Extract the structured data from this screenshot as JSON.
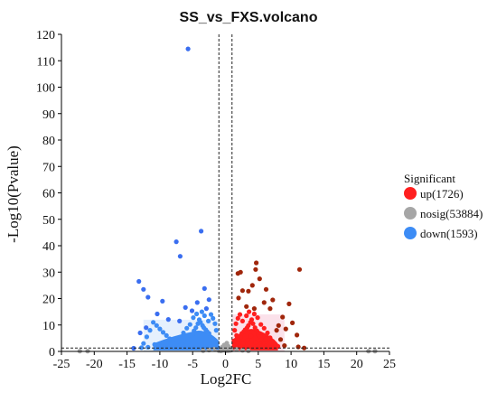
{
  "chart_data": {
    "type": "scatter",
    "title": "SS_vs_FXS.volcano",
    "xlabel": "Log2FC",
    "ylabel": "-Log10(Pvalue)",
    "xlim": [
      -25,
      25
    ],
    "ylim": [
      0,
      120
    ],
    "x_ticks": [
      -25,
      -20,
      -15,
      -10,
      -5,
      0,
      5,
      10,
      15,
      20,
      25
    ],
    "y_ticks": [
      0,
      10,
      20,
      30,
      40,
      50,
      60,
      70,
      80,
      90,
      100,
      110,
      120
    ],
    "grid": false,
    "legend": {
      "title": "Significant",
      "placement": "right",
      "entries": [
        {
          "label": "up(1726)",
          "color": "#ff1f1f"
        },
        {
          "label": "nosig(53884)",
          "color": "#a6a6a6"
        },
        {
          "label": "down(1593)",
          "color": "#3d8cf5"
        }
      ]
    },
    "thresholds": {
      "log2fc": [
        -1,
        1
      ],
      "neg_log10_pvalue": 1.3
    },
    "colors": {
      "up_core": "#ff1f1f",
      "up_outlier": "#a0260b",
      "nosig": "#a6a6a6",
      "down_core": "#3d8cf5",
      "down_outlier": "#3a6ef0"
    },
    "series": [
      {
        "name": "up(1726)",
        "color": "#ff1f1f",
        "points": [
          [
            1.2,
            1.5
          ],
          [
            1.5,
            2.5
          ],
          [
            1.8,
            3.2
          ],
          [
            2.0,
            4.5
          ],
          [
            2.3,
            5.5
          ],
          [
            2.5,
            6.8
          ],
          [
            2.8,
            7.5
          ],
          [
            3.0,
            8.2
          ],
          [
            3.3,
            9.0
          ],
          [
            3.5,
            9.8
          ],
          [
            3.8,
            11.0
          ],
          [
            4.0,
            12.0
          ],
          [
            4.2,
            10.5
          ],
          [
            4.5,
            9.0
          ],
          [
            4.8,
            7.8
          ],
          [
            5.0,
            6.5
          ],
          [
            5.3,
            5.5
          ],
          [
            5.5,
            4.5
          ],
          [
            5.8,
            3.6
          ],
          [
            6.0,
            2.8
          ],
          [
            6.3,
            2.2
          ],
          [
            6.6,
            1.8
          ],
          [
            7.0,
            1.5
          ],
          [
            1.4,
            8.0
          ],
          [
            1.6,
            10.5
          ],
          [
            1.9,
            12.5
          ],
          [
            2.2,
            14.0
          ],
          [
            2.6,
            11.5
          ],
          [
            3.2,
            13.5
          ],
          [
            3.6,
            15.0
          ],
          [
            4.4,
            14.2
          ],
          [
            4.9,
            12.8
          ],
          [
            5.4,
            10.2
          ],
          [
            5.9,
            8.8
          ],
          [
            6.4,
            7.0
          ],
          [
            6.8,
            5.2
          ],
          [
            7.2,
            3.8
          ],
          [
            7.6,
            2.6
          ],
          [
            8.0,
            1.9
          ],
          [
            1.3,
            4.0
          ],
          [
            1.7,
            6.0
          ],
          [
            2.1,
            2.0
          ],
          [
            2.7,
            3.0
          ],
          [
            3.4,
            4.2
          ],
          [
            3.9,
            5.8
          ],
          [
            4.6,
            3.4
          ],
          [
            5.1,
            2.4
          ],
          [
            5.6,
            1.6
          ],
          [
            6.2,
            4.8
          ],
          [
            6.7,
            3.2
          ]
        ]
      },
      {
        "name": "up_outliers",
        "color": "#a0260b",
        "points": [
          [
            4.7,
            33.5
          ],
          [
            4.6,
            31.0
          ],
          [
            5.2,
            27.5
          ],
          [
            4.1,
            25.0
          ],
          [
            3.5,
            22.8
          ],
          [
            6.2,
            23.5
          ],
          [
            7.2,
            19.5
          ],
          [
            2.3,
            30.0
          ],
          [
            11.3,
            31.0
          ],
          [
            9.7,
            18.0
          ],
          [
            8.7,
            13.0
          ],
          [
            10.2,
            10.8
          ],
          [
            9.2,
            8.5
          ],
          [
            10.9,
            6.2
          ],
          [
            8.1,
            9.8
          ],
          [
            7.8,
            8.0
          ],
          [
            6.8,
            16.2
          ],
          [
            5.9,
            18.5
          ],
          [
            3.2,
            17.0
          ],
          [
            2.0,
            20.2
          ],
          [
            2.6,
            23.0
          ],
          [
            1.9,
            29.5
          ],
          [
            8.4,
            4.5
          ],
          [
            9.0,
            2.2
          ],
          [
            11.1,
            1.7
          ],
          [
            12.0,
            1.3
          ],
          [
            4.4,
            16.2
          ]
        ]
      },
      {
        "name": "nosig(53884)",
        "color": "#a6a6a6",
        "points": [
          [
            -1.0,
            0.3
          ],
          [
            -0.8,
            0.6
          ],
          [
            -0.6,
            1.0
          ],
          [
            -0.4,
            0.4
          ],
          [
            -0.2,
            0.9
          ],
          [
            0.0,
            0.5
          ],
          [
            0.2,
            1.1
          ],
          [
            0.4,
            0.3
          ],
          [
            0.6,
            0.8
          ],
          [
            0.8,
            1.2
          ],
          [
            -0.9,
            1.0
          ],
          [
            -0.7,
            0.2
          ],
          [
            -0.3,
            1.2
          ],
          [
            0.1,
            0.2
          ],
          [
            0.5,
            1.0
          ],
          [
            0.9,
            0.5
          ],
          [
            -0.5,
            0.7
          ],
          [
            0.3,
            0.6
          ],
          [
            0.7,
            0.4
          ],
          [
            -0.1,
            0.8
          ],
          [
            -0.2,
            2.4
          ],
          [
            0.2,
            3.1
          ],
          [
            0.4,
            2.0
          ],
          [
            -0.5,
            1.6
          ],
          [
            -1.6,
            1.0
          ],
          [
            1.7,
            0.8
          ],
          [
            -2.5,
            0.5
          ],
          [
            2.6,
            0.4
          ],
          [
            -3.4,
            0.3
          ],
          [
            3.5,
            0.2
          ],
          [
            -21.0,
            0.1
          ],
          [
            -22.2,
            0.1
          ],
          [
            21.8,
            0.1
          ],
          [
            22.8,
            0.1
          ]
        ]
      },
      {
        "name": "down(1593)",
        "color": "#3d8cf5",
        "points": [
          [
            -1.2,
            1.5
          ],
          [
            -1.5,
            2.5
          ],
          [
            -1.8,
            3.2
          ],
          [
            -2.0,
            4.5
          ],
          [
            -2.3,
            5.5
          ],
          [
            -2.5,
            6.8
          ],
          [
            -2.8,
            7.5
          ],
          [
            -3.0,
            8.2
          ],
          [
            -3.3,
            9.0
          ],
          [
            -3.5,
            9.8
          ],
          [
            -3.8,
            11.0
          ],
          [
            -4.0,
            12.0
          ],
          [
            -4.2,
            10.5
          ],
          [
            -4.5,
            9.0
          ],
          [
            -4.8,
            7.8
          ],
          [
            -5.0,
            6.5
          ],
          [
            -5.3,
            5.5
          ],
          [
            -5.5,
            4.5
          ],
          [
            -5.8,
            3.6
          ],
          [
            -6.0,
            2.8
          ],
          [
            -6.3,
            2.2
          ],
          [
            -6.6,
            1.8
          ],
          [
            -7.0,
            1.5
          ],
          [
            -7.5,
            2.5
          ],
          [
            -8.0,
            3.5
          ],
          [
            -8.5,
            4.8
          ],
          [
            -9.0,
            6.0
          ],
          [
            -9.5,
            7.2
          ],
          [
            -10.0,
            8.5
          ],
          [
            -10.5,
            9.8
          ],
          [
            -11.0,
            11.0
          ],
          [
            -11.5,
            8.0
          ],
          [
            -12.0,
            5.5
          ],
          [
            -12.5,
            3.0
          ],
          [
            -1.4,
            8.0
          ],
          [
            -1.6,
            10.5
          ],
          [
            -1.9,
            12.5
          ],
          [
            -2.2,
            14.0
          ],
          [
            -2.6,
            11.5
          ],
          [
            -3.2,
            13.5
          ],
          [
            -3.6,
            15.0
          ],
          [
            -4.4,
            14.2
          ],
          [
            -4.9,
            12.8
          ],
          [
            -5.4,
            10.2
          ],
          [
            -5.9,
            8.8
          ],
          [
            -6.4,
            7.0
          ],
          [
            -6.8,
            5.2
          ],
          [
            -7.2,
            3.8
          ],
          [
            -7.6,
            2.6
          ],
          [
            -9.8,
            1.9
          ],
          [
            -10.8,
            2.6
          ],
          [
            -11.8,
            1.6
          ],
          [
            -12.8,
            1.4
          ]
        ]
      },
      {
        "name": "down_outliers",
        "color": "#3a6ef0",
        "points": [
          [
            -5.7,
            114.5
          ],
          [
            -7.5,
            41.5
          ],
          [
            -3.7,
            45.5
          ],
          [
            -6.9,
            36.0
          ],
          [
            -13.2,
            26.5
          ],
          [
            -12.5,
            23.5
          ],
          [
            -3.2,
            23.8
          ],
          [
            -11.8,
            20.5
          ],
          [
            -9.6,
            19.0
          ],
          [
            -4.3,
            18.5
          ],
          [
            -2.5,
            19.6
          ],
          [
            -6.1,
            16.6
          ],
          [
            -10.4,
            14.2
          ],
          [
            -7.0,
            11.5
          ],
          [
            -13.0,
            7.0
          ],
          [
            -5.1,
            15.4
          ],
          [
            -2.9,
            16.2
          ],
          [
            -8.7,
            12.1
          ],
          [
            -12.1,
            9.0
          ],
          [
            -14.0,
            1.2
          ]
        ]
      }
    ]
  }
}
